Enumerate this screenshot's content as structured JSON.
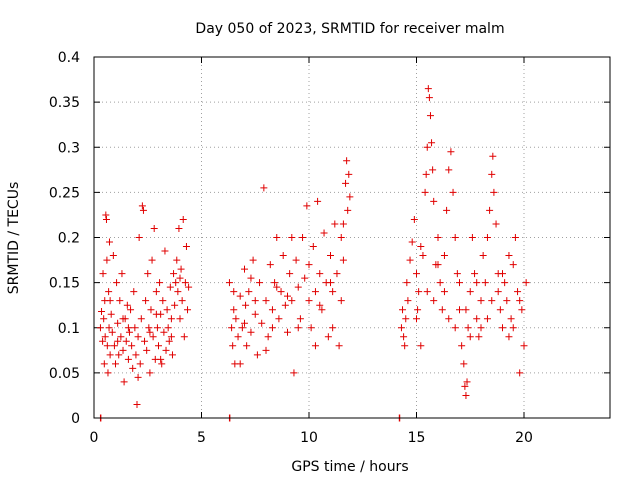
{
  "chart_data": {
    "type": "scatter",
    "title": "Day 050 of 2023, SRMTID for receiver malm",
    "xlabel": "GPS time / hours",
    "ylabel": "SRMTID / TECUs",
    "xlim": [
      0,
      24
    ],
    "ylim": [
      0,
      0.4
    ],
    "x_ticks": [
      0,
      5,
      10,
      15,
      20
    ],
    "x_tick_labels": [
      "0",
      "5",
      "10",
      "15",
      "20"
    ],
    "y_ticks": [
      0,
      0.05,
      0.1,
      0.15,
      0.2,
      0.25,
      0.3,
      0.35,
      0.4
    ],
    "y_tick_labels": [
      "0",
      "0.05",
      "0.1",
      "0.15",
      "0.2",
      "0.25",
      "0.3",
      "0.35",
      "0.4"
    ],
    "grid": true,
    "marker": "+",
    "marker_color": "#e00000",
    "axis_color": "#000000",
    "grid_color": "#a0a0a0",
    "series": [
      {
        "name": "SRMTID",
        "points": [
          [
            0.3,
            0.1
          ],
          [
            0.35,
            0.118
          ],
          [
            0.4,
            0.085
          ],
          [
            0.42,
            0.16
          ],
          [
            0.45,
            0.11
          ],
          [
            0.48,
            0.06
          ],
          [
            0.5,
            0.13
          ],
          [
            0.52,
            0.09
          ],
          [
            0.55,
            0.225
          ],
          [
            0.58,
            0.22
          ],
          [
            0.6,
            0.175
          ],
          [
            0.62,
            0.08
          ],
          [
            0.65,
            0.05
          ],
          [
            0.68,
            0.14
          ],
          [
            0.7,
            0.1
          ],
          [
            0.72,
            0.195
          ],
          [
            0.75,
            0.07
          ],
          [
            0.8,
            0.115
          ],
          [
            0.85,
            0.095
          ],
          [
            0.9,
            0.18
          ],
          [
            0.95,
            0.08
          ],
          [
            1.0,
            0.06
          ],
          [
            1.05,
            0.15
          ],
          [
            1.1,
            0.105
          ],
          [
            1.15,
            0.07
          ],
          [
            1.2,
            0.13
          ],
          [
            1.25,
            0.09
          ],
          [
            1.3,
            0.16
          ],
          [
            1.35,
            0.075
          ],
          [
            1.4,
            0.04
          ],
          [
            1.45,
            0.11
          ],
          [
            1.5,
            0.085
          ],
          [
            1.55,
            0.125
          ],
          [
            1.6,
            0.065
          ],
          [
            1.65,
            0.095
          ],
          [
            1.7,
            0.12
          ],
          [
            1.75,
            0.08
          ],
          [
            1.8,
            0.055
          ],
          [
            1.85,
            0.14
          ],
          [
            1.9,
            0.1
          ],
          [
            1.95,
            0.07
          ],
          [
            2.0,
            0.015
          ],
          [
            2.05,
            0.09
          ],
          [
            2.1,
            0.2
          ],
          [
            2.15,
            0.06
          ],
          [
            2.2,
            0.11
          ],
          [
            2.25,
            0.235
          ],
          [
            2.3,
            0.23
          ],
          [
            2.35,
            0.085
          ],
          [
            2.4,
            0.13
          ],
          [
            2.45,
            0.075
          ],
          [
            2.5,
            0.16
          ],
          [
            2.55,
            0.1
          ],
          [
            2.6,
            0.05
          ],
          [
            2.65,
            0.12
          ],
          [
            2.7,
            0.175
          ],
          [
            2.75,
            0.09
          ],
          [
            2.8,
            0.21
          ],
          [
            2.85,
            0.065
          ],
          [
            2.9,
            0.14
          ],
          [
            2.95,
            0.1
          ],
          [
            3.0,
            0.08
          ],
          [
            3.05,
            0.15
          ],
          [
            3.1,
            0.115
          ],
          [
            3.15,
            0.06
          ],
          [
            3.2,
            0.13
          ],
          [
            3.25,
            0.095
          ],
          [
            3.3,
            0.185
          ],
          [
            3.35,
            0.075
          ],
          [
            3.4,
            0.12
          ],
          [
            3.45,
            0.1
          ],
          [
            3.5,
            0.085
          ],
          [
            3.55,
            0.145
          ],
          [
            3.6,
            0.11
          ],
          [
            3.65,
            0.07
          ],
          [
            3.7,
            0.16
          ],
          [
            3.75,
            0.125
          ],
          [
            3.8,
            0.15
          ],
          [
            3.85,
            0.175
          ],
          [
            3.9,
            0.14
          ],
          [
            3.95,
            0.21
          ],
          [
            4.0,
            0.11
          ],
          [
            4.05,
            0.165
          ],
          [
            4.1,
            0.13
          ],
          [
            4.15,
            0.22
          ],
          [
            4.2,
            0.09
          ],
          [
            4.25,
            0.15
          ],
          [
            4.3,
            0.19
          ],
          [
            4.35,
            0.12
          ],
          [
            4.4,
            0.145
          ],
          [
            0.75,
            0.13
          ],
          [
            1.1,
            0.085
          ],
          [
            1.6,
            0.1
          ],
          [
            2.05,
            0.045
          ],
          [
            2.6,
            0.095
          ],
          [
            3.1,
            0.065
          ],
          [
            3.6,
            0.09
          ],
          [
            4.0,
            0.155
          ],
          [
            1.35,
            0.11
          ],
          [
            2.9,
            0.115
          ],
          [
            6.3,
            0.15
          ],
          [
            6.4,
            0.1
          ],
          [
            6.45,
            0.08
          ],
          [
            6.5,
            0.12
          ],
          [
            6.55,
            0.06
          ],
          [
            6.6,
            0.11
          ],
          [
            6.7,
            0.09
          ],
          [
            6.8,
            0.135
          ],
          [
            6.9,
            0.1
          ],
          [
            7.0,
            0.165
          ],
          [
            7.05,
            0.125
          ],
          [
            7.1,
            0.08
          ],
          [
            7.2,
            0.14
          ],
          [
            7.3,
            0.095
          ],
          [
            7.4,
            0.175
          ],
          [
            7.5,
            0.115
          ],
          [
            7.6,
            0.07
          ],
          [
            7.7,
            0.15
          ],
          [
            7.8,
            0.105
          ],
          [
            7.9,
            0.255
          ],
          [
            8.0,
            0.13
          ],
          [
            8.1,
            0.09
          ],
          [
            8.2,
            0.17
          ],
          [
            8.3,
            0.12
          ],
          [
            8.4,
            0.15
          ],
          [
            8.5,
            0.2
          ],
          [
            8.6,
            0.11
          ],
          [
            8.7,
            0.14
          ],
          [
            8.8,
            0.18
          ],
          [
            8.9,
            0.125
          ],
          [
            9.0,
            0.095
          ],
          [
            9.1,
            0.16
          ],
          [
            9.2,
            0.13
          ],
          [
            9.3,
            0.05
          ],
          [
            9.4,
            0.175
          ],
          [
            9.5,
            0.145
          ],
          [
            9.6,
            0.11
          ],
          [
            9.7,
            0.2
          ],
          [
            9.8,
            0.155
          ],
          [
            9.9,
            0.235
          ],
          [
            10.0,
            0.13
          ],
          [
            10.1,
            0.1
          ],
          [
            10.2,
            0.19
          ],
          [
            10.3,
            0.14
          ],
          [
            10.4,
            0.24
          ],
          [
            10.5,
            0.16
          ],
          [
            10.6,
            0.12
          ],
          [
            10.7,
            0.205
          ],
          [
            10.8,
            0.15
          ],
          [
            10.9,
            0.09
          ],
          [
            11.0,
            0.18
          ],
          [
            11.1,
            0.14
          ],
          [
            11.2,
            0.215
          ],
          [
            11.3,
            0.16
          ],
          [
            11.4,
            0.08
          ],
          [
            11.5,
            0.2
          ],
          [
            11.6,
            0.175
          ],
          [
            11.7,
            0.26
          ],
          [
            11.75,
            0.285
          ],
          [
            11.8,
            0.23
          ],
          [
            11.85,
            0.27
          ],
          [
            11.9,
            0.245
          ],
          [
            6.5,
            0.14
          ],
          [
            7.0,
            0.105
          ],
          [
            7.5,
            0.13
          ],
          [
            8.0,
            0.075
          ],
          [
            8.5,
            0.145
          ],
          [
            9.0,
            0.135
          ],
          [
            9.5,
            0.1
          ],
          [
            10.0,
            0.17
          ],
          [
            10.5,
            0.125
          ],
          [
            11.0,
            0.15
          ],
          [
            11.5,
            0.13
          ],
          [
            6.8,
            0.06
          ],
          [
            7.3,
            0.155
          ],
          [
            8.3,
            0.1
          ],
          [
            9.2,
            0.2
          ],
          [
            10.3,
            0.08
          ],
          [
            11.1,
            0.1
          ],
          [
            11.6,
            0.215
          ],
          [
            14.3,
            0.1
          ],
          [
            14.35,
            0.12
          ],
          [
            14.4,
            0.09
          ],
          [
            14.45,
            0.08
          ],
          [
            14.5,
            0.11
          ],
          [
            14.55,
            0.15
          ],
          [
            14.6,
            0.13
          ],
          [
            14.7,
            0.175
          ],
          [
            14.8,
            0.195
          ],
          [
            14.9,
            0.22
          ],
          [
            15.0,
            0.16
          ],
          [
            15.05,
            0.12
          ],
          [
            15.1,
            0.14
          ],
          [
            15.2,
            0.08
          ],
          [
            15.3,
            0.18
          ],
          [
            15.4,
            0.25
          ],
          [
            15.45,
            0.27
          ],
          [
            15.5,
            0.3
          ],
          [
            15.55,
            0.365
          ],
          [
            15.6,
            0.355
          ],
          [
            15.65,
            0.335
          ],
          [
            15.7,
            0.305
          ],
          [
            15.75,
            0.275
          ],
          [
            15.8,
            0.24
          ],
          [
            15.9,
            0.17
          ],
          [
            16.0,
            0.2
          ],
          [
            16.1,
            0.15
          ],
          [
            16.2,
            0.12
          ],
          [
            16.3,
            0.18
          ],
          [
            16.4,
            0.23
          ],
          [
            16.5,
            0.275
          ],
          [
            16.6,
            0.295
          ],
          [
            16.7,
            0.25
          ],
          [
            16.8,
            0.2
          ],
          [
            16.9,
            0.16
          ],
          [
            17.0,
            0.12
          ],
          [
            17.1,
            0.08
          ],
          [
            17.2,
            0.06
          ],
          [
            17.25,
            0.035
          ],
          [
            17.3,
            0.025
          ],
          [
            17.35,
            0.04
          ],
          [
            17.4,
            0.1
          ],
          [
            17.5,
            0.14
          ],
          [
            17.6,
            0.2
          ],
          [
            17.7,
            0.16
          ],
          [
            17.8,
            0.11
          ],
          [
            17.9,
            0.09
          ],
          [
            18.0,
            0.13
          ],
          [
            18.1,
            0.18
          ],
          [
            18.2,
            0.15
          ],
          [
            18.3,
            0.2
          ],
          [
            18.4,
            0.23
          ],
          [
            18.5,
            0.27
          ],
          [
            18.55,
            0.29
          ],
          [
            18.6,
            0.25
          ],
          [
            18.7,
            0.215
          ],
          [
            18.8,
            0.16
          ],
          [
            18.9,
            0.12
          ],
          [
            19.0,
            0.1
          ],
          [
            19.1,
            0.15
          ],
          [
            19.2,
            0.13
          ],
          [
            19.3,
            0.09
          ],
          [
            19.4,
            0.11
          ],
          [
            19.5,
            0.17
          ],
          [
            19.6,
            0.2
          ],
          [
            19.7,
            0.14
          ],
          [
            19.8,
            0.05
          ],
          [
            19.9,
            0.12
          ],
          [
            20.0,
            0.08
          ],
          [
            20.1,
            0.15
          ],
          [
            15.0,
            0.11
          ],
          [
            15.5,
            0.14
          ],
          [
            16.0,
            0.17
          ],
          [
            16.5,
            0.11
          ],
          [
            17.0,
            0.15
          ],
          [
            17.5,
            0.09
          ],
          [
            18.0,
            0.1
          ],
          [
            18.5,
            0.13
          ],
          [
            19.0,
            0.16
          ],
          [
            19.5,
            0.1
          ],
          [
            15.2,
            0.19
          ],
          [
            15.8,
            0.13
          ],
          [
            16.3,
            0.14
          ],
          [
            16.8,
            0.1
          ],
          [
            17.3,
            0.12
          ],
          [
            17.8,
            0.15
          ],
          [
            18.3,
            0.11
          ],
          [
            18.8,
            0.14
          ],
          [
            19.3,
            0.18
          ],
          [
            19.8,
            0.13
          ],
          [
            0.3,
            0.0
          ],
          [
            0.32,
            0.0
          ],
          [
            6.3,
            0.0
          ],
          [
            6.32,
            0.0
          ],
          [
            14.2,
            0.0
          ],
          [
            14.22,
            0.0
          ]
        ]
      }
    ]
  }
}
